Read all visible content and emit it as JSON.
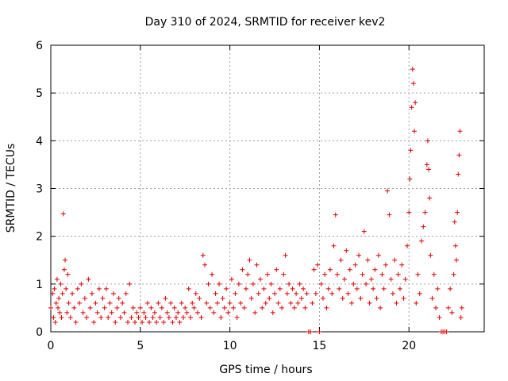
{
  "chart_data": {
    "type": "scatter",
    "title": "Day 310 of 2024, SRMTID for receiver kev2",
    "xlabel": "GPS time / hours",
    "ylabel": "SRMTID / TECUs",
    "xlim": [
      0,
      24.2
    ],
    "ylim": [
      0,
      6
    ],
    "x_ticks": [
      0,
      5,
      10,
      15,
      20
    ],
    "y_ticks": [
      0,
      1,
      2,
      3,
      4,
      5,
      6
    ],
    "x_tick_labels": [
      "0",
      "5",
      "10",
      "15",
      "20"
    ],
    "y_tick_labels": [
      "0",
      "1",
      "2",
      "3",
      "4",
      "5",
      "6"
    ],
    "grid": true,
    "marker": "+",
    "color": "#e00000",
    "series": [
      {
        "name": "kev2",
        "points": [
          [
            0.0,
            0.5
          ],
          [
            0.1,
            0.8
          ],
          [
            0.15,
            0.3
          ],
          [
            0.2,
            0.9
          ],
          [
            0.25,
            0.2
          ],
          [
            0.3,
            0.6
          ],
          [
            0.35,
            1.1
          ],
          [
            0.4,
            0.5
          ],
          [
            0.45,
            0.7
          ],
          [
            0.5,
            0.4
          ],
          [
            0.55,
            1.0
          ],
          [
            0.6,
            0.3
          ],
          [
            0.65,
            0.8
          ],
          [
            0.7,
            2.47
          ],
          [
            0.75,
            1.3
          ],
          [
            0.8,
            1.5
          ],
          [
            0.85,
            0.9
          ],
          [
            0.9,
            0.4
          ],
          [
            0.95,
            1.2
          ],
          [
            1.0,
            0.6
          ],
          [
            1.1,
            0.3
          ],
          [
            1.2,
            0.8
          ],
          [
            1.3,
            0.5
          ],
          [
            1.4,
            0.2
          ],
          [
            1.5,
            0.9
          ],
          [
            1.6,
            0.6
          ],
          [
            1.7,
            1.0
          ],
          [
            1.8,
            0.4
          ],
          [
            1.9,
            0.7
          ],
          [
            2.0,
            0.3
          ],
          [
            2.1,
            1.1
          ],
          [
            2.2,
            0.5
          ],
          [
            2.3,
            0.8
          ],
          [
            2.4,
            0.2
          ],
          [
            2.5,
            0.6
          ],
          [
            2.6,
            0.4
          ],
          [
            2.7,
            0.9
          ],
          [
            2.8,
            0.3
          ],
          [
            2.9,
            0.7
          ],
          [
            3.0,
            0.5
          ],
          [
            3.1,
            0.9
          ],
          [
            3.2,
            0.3
          ],
          [
            3.3,
            0.6
          ],
          [
            3.4,
            0.4
          ],
          [
            3.5,
            0.8
          ],
          [
            3.6,
            0.2
          ],
          [
            3.7,
            0.5
          ],
          [
            3.8,
            0.7
          ],
          [
            3.9,
            0.3
          ],
          [
            4.0,
            0.6
          ],
          [
            4.1,
            0.4
          ],
          [
            4.2,
            0.8
          ],
          [
            4.3,
            0.2
          ],
          [
            4.4,
            1.0
          ],
          [
            4.5,
            0.3
          ],
          [
            4.6,
            0.5
          ],
          [
            4.7,
            0.2
          ],
          [
            4.8,
            0.4
          ],
          [
            4.9,
            0.3
          ],
          [
            5.0,
            0.5
          ],
          [
            5.1,
            0.2
          ],
          [
            5.2,
            0.4
          ],
          [
            5.3,
            0.3
          ],
          [
            5.4,
            0.6
          ],
          [
            5.5,
            0.2
          ],
          [
            5.6,
            0.5
          ],
          [
            5.7,
            0.3
          ],
          [
            5.8,
            0.4
          ],
          [
            5.9,
            0.2
          ],
          [
            6.0,
            0.6
          ],
          [
            6.1,
            0.3
          ],
          [
            6.2,
            0.5
          ],
          [
            6.3,
            0.2
          ],
          [
            6.4,
            0.7
          ],
          [
            6.5,
            0.4
          ],
          [
            6.6,
            0.3
          ],
          [
            6.7,
            0.6
          ],
          [
            6.8,
            0.2
          ],
          [
            6.9,
            0.5
          ],
          [
            7.0,
            0.3
          ],
          [
            7.1,
            0.4
          ],
          [
            7.2,
            0.2
          ],
          [
            7.3,
            0.6
          ],
          [
            7.4,
            0.3
          ],
          [
            7.5,
            0.5
          ],
          [
            7.6,
            0.4
          ],
          [
            7.7,
            0.9
          ],
          [
            7.8,
            0.3
          ],
          [
            7.9,
            0.6
          ],
          [
            8.0,
            0.5
          ],
          [
            8.1,
            0.8
          ],
          [
            8.2,
            0.4
          ],
          [
            8.3,
            0.7
          ],
          [
            8.4,
            0.3
          ],
          [
            8.5,
            1.6
          ],
          [
            8.6,
            1.4
          ],
          [
            8.7,
            0.6
          ],
          [
            8.8,
            1.0
          ],
          [
            8.9,
            0.5
          ],
          [
            9.0,
            1.2
          ],
          [
            9.1,
            0.4
          ],
          [
            9.2,
            0.8
          ],
          [
            9.3,
            0.6
          ],
          [
            9.4,
            1.0
          ],
          [
            9.5,
            0.3
          ],
          [
            9.6,
            0.7
          ],
          [
            9.7,
            0.5
          ],
          [
            9.8,
            0.9
          ],
          [
            9.9,
            0.4
          ],
          [
            10.0,
            0.6
          ],
          [
            10.1,
            1.1
          ],
          [
            10.2,
            0.5
          ],
          [
            10.3,
            0.8
          ],
          [
            10.4,
            0.3
          ],
          [
            10.5,
            1.0
          ],
          [
            10.6,
            0.6
          ],
          [
            10.7,
            1.3
          ],
          [
            10.8,
            0.5
          ],
          [
            10.9,
            0.9
          ],
          [
            11.0,
            1.2
          ],
          [
            11.1,
            1.5
          ],
          [
            11.2,
            0.7
          ],
          [
            11.3,
            1.0
          ],
          [
            11.4,
            0.4
          ],
          [
            11.5,
            1.4
          ],
          [
            11.6,
            0.8
          ],
          [
            11.7,
            1.1
          ],
          [
            11.8,
            0.5
          ],
          [
            11.9,
            0.9
          ],
          [
            12.0,
            0.6
          ],
          [
            12.1,
            1.2
          ],
          [
            12.2,
            0.7
          ],
          [
            12.3,
            1.0
          ],
          [
            12.4,
            0.4
          ],
          [
            12.5,
            0.8
          ],
          [
            12.6,
            1.3
          ],
          [
            12.7,
            0.6
          ],
          [
            12.8,
            0.9
          ],
          [
            12.9,
            0.5
          ],
          [
            13.0,
            1.2
          ],
          [
            13.1,
            1.6
          ],
          [
            13.2,
            0.8
          ],
          [
            13.3,
            1.0
          ],
          [
            13.4,
            0.6
          ],
          [
            13.5,
            0.9
          ],
          [
            13.6,
            0.5
          ],
          [
            13.7,
            0.8
          ],
          [
            13.8,
            0.6
          ],
          [
            13.9,
            1.0
          ],
          [
            14.0,
            0.7
          ],
          [
            14.1,
            0.9
          ],
          [
            14.2,
            0.5
          ],
          [
            14.3,
            0.8
          ],
          [
            14.4,
            0.0
          ],
          [
            14.5,
            0.0
          ],
          [
            14.6,
            0.6
          ],
          [
            14.7,
            1.3
          ],
          [
            14.8,
            0.8
          ],
          [
            14.9,
            1.4
          ],
          [
            15.0,
            0.0
          ],
          [
            15.1,
            1.0
          ],
          [
            15.2,
            0.7
          ],
          [
            15.3,
            1.2
          ],
          [
            15.4,
            0.5
          ],
          [
            15.5,
            0.9
          ],
          [
            15.6,
            1.3
          ],
          [
            15.7,
            0.8
          ],
          [
            15.8,
            1.8
          ],
          [
            15.9,
            2.45
          ],
          [
            16.0,
            1.2
          ],
          [
            16.1,
            0.9
          ],
          [
            16.2,
            1.5
          ],
          [
            16.3,
            0.7
          ],
          [
            16.4,
            1.1
          ],
          [
            16.5,
            1.7
          ],
          [
            16.6,
            0.8
          ],
          [
            16.7,
            1.3
          ],
          [
            16.8,
            0.6
          ],
          [
            16.9,
            1.0
          ],
          [
            17.0,
            1.4
          ],
          [
            17.1,
            0.9
          ],
          [
            17.2,
            1.6
          ],
          [
            17.3,
            0.7
          ],
          [
            17.4,
            1.2
          ],
          [
            17.5,
            2.1
          ],
          [
            17.6,
            1.0
          ],
          [
            17.7,
            1.5
          ],
          [
            17.8,
            0.6
          ],
          [
            17.9,
            1.1
          ],
          [
            18.0,
            0.9
          ],
          [
            18.1,
            1.3
          ],
          [
            18.2,
            0.7
          ],
          [
            18.3,
            1.6
          ],
          [
            18.4,
            0.5
          ],
          [
            18.5,
            1.2
          ],
          [
            18.6,
            0.9
          ],
          [
            18.7,
            1.4
          ],
          [
            18.8,
            2.95
          ],
          [
            18.9,
            2.45
          ],
          [
            19.0,
            1.1
          ],
          [
            19.1,
            0.8
          ],
          [
            19.2,
            1.5
          ],
          [
            19.3,
            0.6
          ],
          [
            19.4,
            1.2
          ],
          [
            19.5,
            0.9
          ],
          [
            19.6,
            1.4
          ],
          [
            19.7,
            0.7
          ],
          [
            19.8,
            1.1
          ],
          [
            19.9,
            1.8
          ],
          [
            20.0,
            2.5
          ],
          [
            20.05,
            3.2
          ],
          [
            20.1,
            3.8
          ],
          [
            20.15,
            4.7
          ],
          [
            20.2,
            5.5
          ],
          [
            20.25,
            5.2
          ],
          [
            20.3,
            4.2
          ],
          [
            20.35,
            4.8
          ],
          [
            20.4,
            0.6
          ],
          [
            20.5,
            1.2
          ],
          [
            20.6,
            0.8
          ],
          [
            20.7,
            1.9
          ],
          [
            20.8,
            2.2
          ],
          [
            20.9,
            2.5
          ],
          [
            21.0,
            3.5
          ],
          [
            21.05,
            4.0
          ],
          [
            21.1,
            3.4
          ],
          [
            21.15,
            2.8
          ],
          [
            21.2,
            1.6
          ],
          [
            21.3,
            0.7
          ],
          [
            21.4,
            1.2
          ],
          [
            21.5,
            0.5
          ],
          [
            21.6,
            0.9
          ],
          [
            21.7,
            0.3
          ],
          [
            21.8,
            0.0
          ],
          [
            21.9,
            0.0
          ],
          [
            22.0,
            0.0
          ],
          [
            22.1,
            0.0
          ],
          [
            22.2,
            0.5
          ],
          [
            22.3,
            0.9
          ],
          [
            22.4,
            0.4
          ],
          [
            22.5,
            1.2
          ],
          [
            22.55,
            2.3
          ],
          [
            22.6,
            1.8
          ],
          [
            22.65,
            1.5
          ],
          [
            22.7,
            2.5
          ],
          [
            22.75,
            3.3
          ],
          [
            22.8,
            3.7
          ],
          [
            22.85,
            4.2
          ],
          [
            22.9,
            0.3
          ],
          [
            22.95,
            0.5
          ]
        ]
      }
    ]
  }
}
